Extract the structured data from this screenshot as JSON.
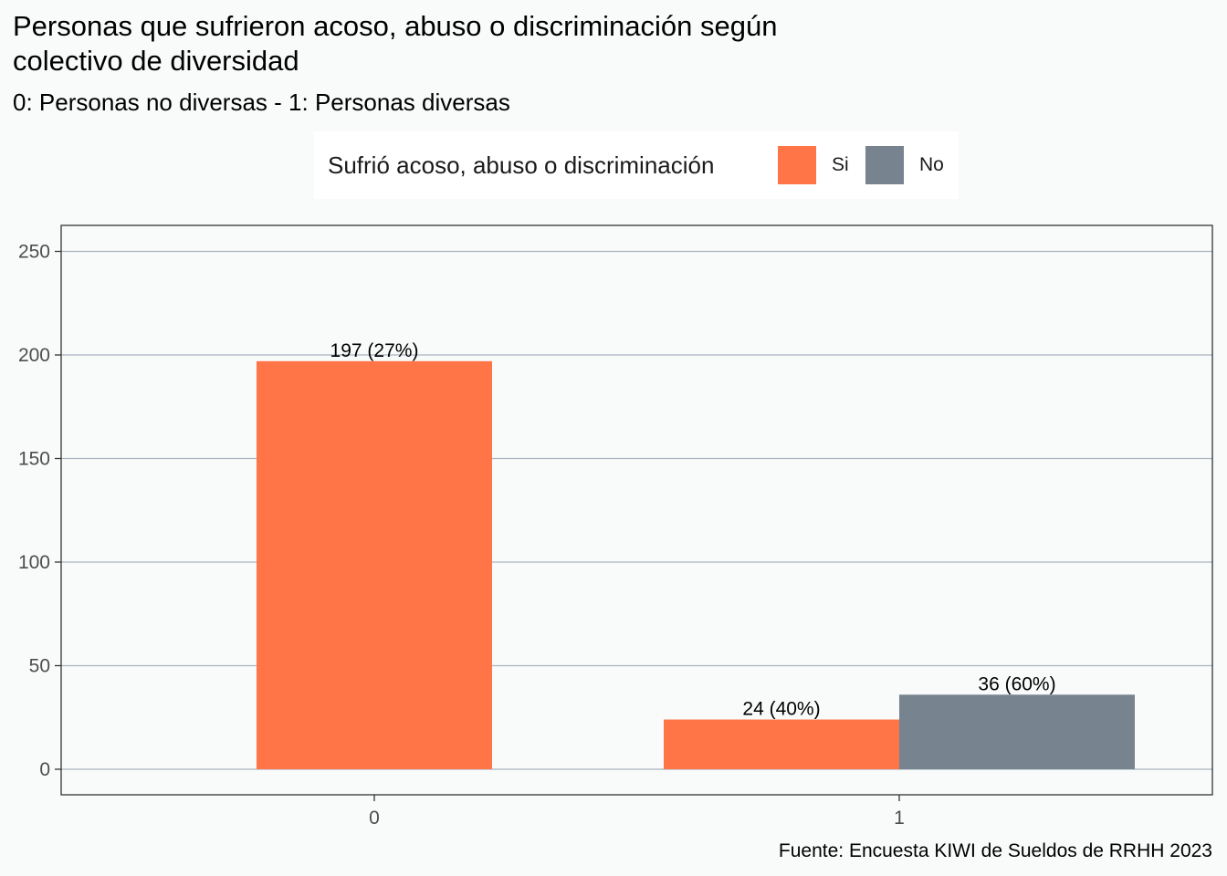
{
  "title": "Personas que sufrieron acoso, abuso o discriminación según colectivo de diversidad",
  "subtitle": "0: Personas no diversas - 1: Personas diversas",
  "caption": "Fuente: Encuesta KIWI de Sueldos de RRHH 2023",
  "legend": {
    "title": "Sufrió acoso, abuso o discriminación",
    "items": [
      {
        "label": "Si",
        "color": "#FF7548"
      },
      {
        "label": "No",
        "color": "#77838F"
      }
    ]
  },
  "chart_data": {
    "type": "bar",
    "categories": [
      "0",
      "1"
    ],
    "series": [
      {
        "name": "Si",
        "color": "#FF7548",
        "values": [
          197,
          24
        ],
        "labels": [
          "197 (27%)",
          "24 (40%)"
        ]
      },
      {
        "name": "No",
        "color": "#77838F",
        "values": [
          null,
          36
        ],
        "labels": [
          null,
          "36 (60%)"
        ]
      }
    ],
    "ylim": [
      -12,
      262
    ],
    "yticks": [
      0,
      50,
      100,
      150,
      200,
      250
    ],
    "grid": true,
    "legend_position": "top"
  }
}
